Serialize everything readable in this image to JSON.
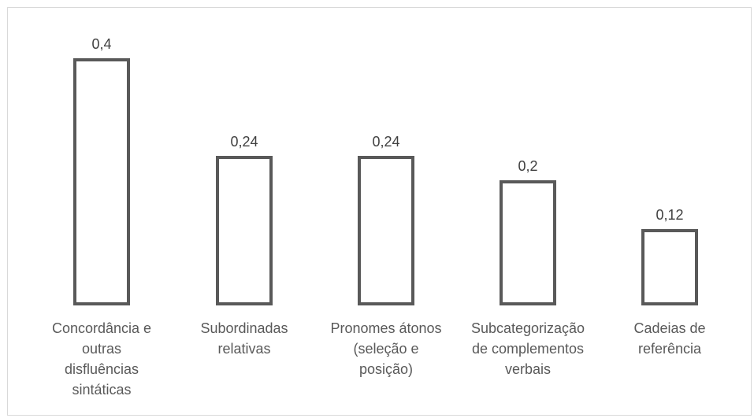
{
  "chart_data": {
    "type": "bar",
    "categories": [
      "Concordância e\noutras\ndisfluências\nsintáticas",
      "Subordinadas\nrelativas",
      "Pronomes átonos\n(seleção e\nposição)",
      "Subcategorização\nde complementos\nverbais",
      "Cadeias de\nreferência"
    ],
    "values": [
      0.4,
      0.24,
      0.24,
      0.2,
      0.12
    ],
    "data_labels": [
      "0,4",
      "0,24",
      "0,24",
      "0,2",
      "0,12"
    ],
    "title": "",
    "xlabel": "",
    "ylabel": "",
    "ylim": [
      0,
      0.4
    ],
    "grid": false,
    "legend": "none",
    "colors": {
      "bar_fill": "#ffffff",
      "bar_stroke": "#595959",
      "label_text": "#595959",
      "frame": "#d9d9d9"
    }
  }
}
